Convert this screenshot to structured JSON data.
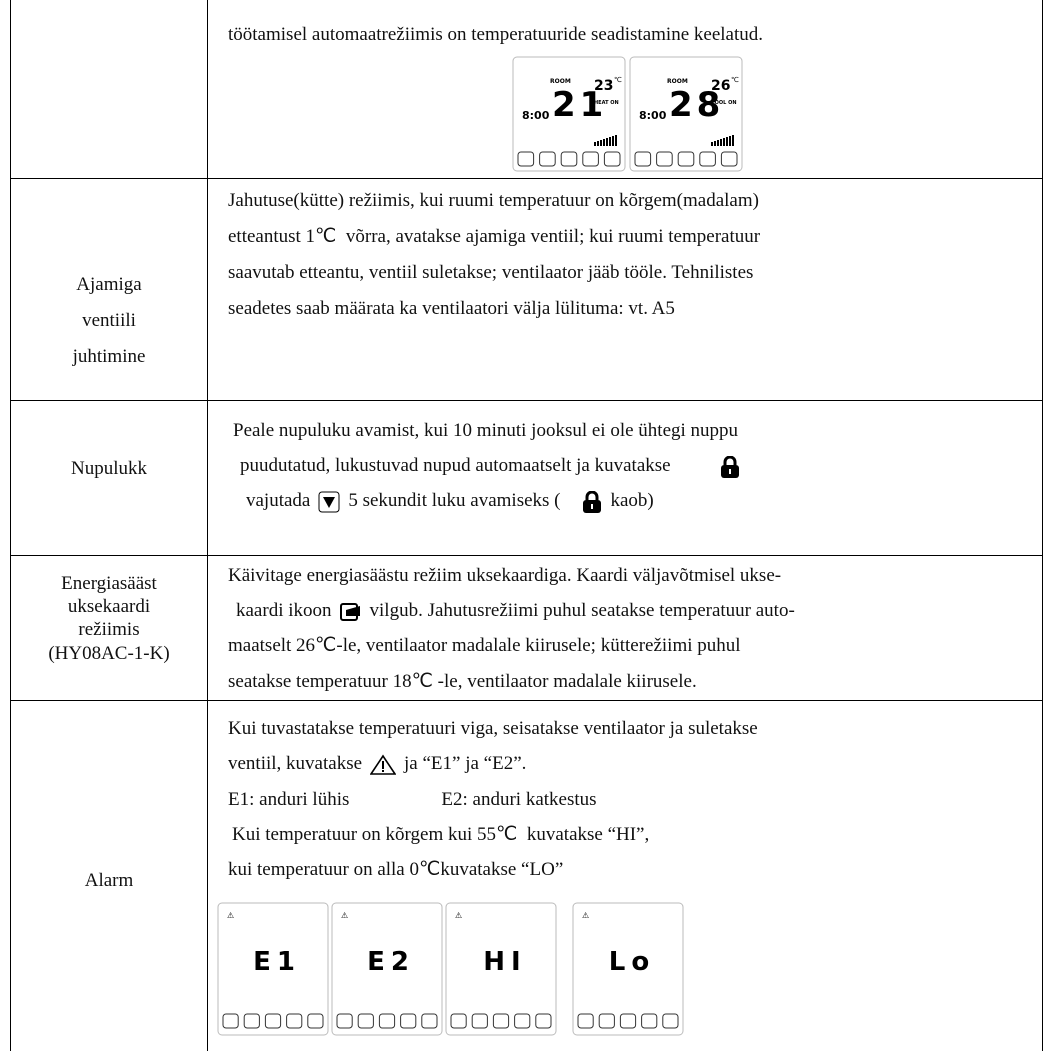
{
  "rows": [
    {
      "lines": [
        "töötamisel automaatrežiimis on temperatuuride seadistamine keelatud."
      ],
      "displays": [
        {
          "room": "ROOM",
          "temp": "21",
          "setpoint": "23",
          "unit": "℃",
          "clock": "8:00",
          "mode": "HEAT ON"
        },
        {
          "room": "ROOM",
          "temp": "28",
          "setpoint": "26",
          "unit": "℃",
          "clock": "8:00",
          "mode": "COOL ON"
        }
      ]
    },
    {
      "label": [
        "Ajamiga",
        "ventiili",
        "juhtimine"
      ],
      "lines": [
        "Jahutuse(kütte) režiimis, kui ruumi temperatuur on kõrgem(madalam)",
        "etteantust 1℃  võrra, avatakse ajamiga ventiil; kui ruumi temperatuur",
        "saavutab etteantu, ventiil suletakse; ventilaator jääb tööle. Tehnilistes",
        "seadetes saab määrata ka ventilaatori välja lülituma: vt. A5"
      ]
    },
    {
      "label": [
        "Nupulukk"
      ],
      "lines": [
        [
          "Peale nupuluku avamist, kui 10 minuti jooksul ei ole ühtegi nuppu"
        ],
        [
          "puudutatud, lukustuvad nupud automaatselt ja kuvatakse"
        ],
        [
          "vajutada",
          "5 sekundit luku avamiseks (",
          "kaob)"
        ]
      ]
    },
    {
      "label": [
        "Energiasääst",
        "uksekaardi",
        "režiimis",
        "(HY08AC-1-K)"
      ],
      "lines": [
        [
          "Käivitage energiasäästu režiim uksekaardiga. Kaardi väljavõtmisel ukse-"
        ],
        [
          "kaardi ikoon",
          "vilgub. Jahutusrežiimi puhul seatakse temperatuur auto-"
        ],
        [
          "maatselt 26℃-le, ventilaator madalale kiirusele; kütterežiimi puhul"
        ],
        [
          "seatakse temperatuur 18℃ -le, ventilaator madalale kiirusele."
        ]
      ]
    },
    {
      "label": [
        "Alarm"
      ],
      "lines": [
        [
          "Kui tuvastatakse temperatuuri viga, seisatakse ventilaator ja suletakse"
        ],
        [
          "ventiil, kuvatakse",
          "ja “E1” ja “E2”."
        ],
        [
          "E1: anduri lühis",
          "E2: anduri katkestus"
        ],
        [
          "Kui temperatuur on kõrgem kui 55℃  kuvatakse “HI”,"
        ],
        [
          "kui temperatuur on alla 0℃kuvatakse “LO”"
        ]
      ],
      "displays": [
        "E1",
        "E2",
        "HI",
        "Lo"
      ]
    }
  ]
}
